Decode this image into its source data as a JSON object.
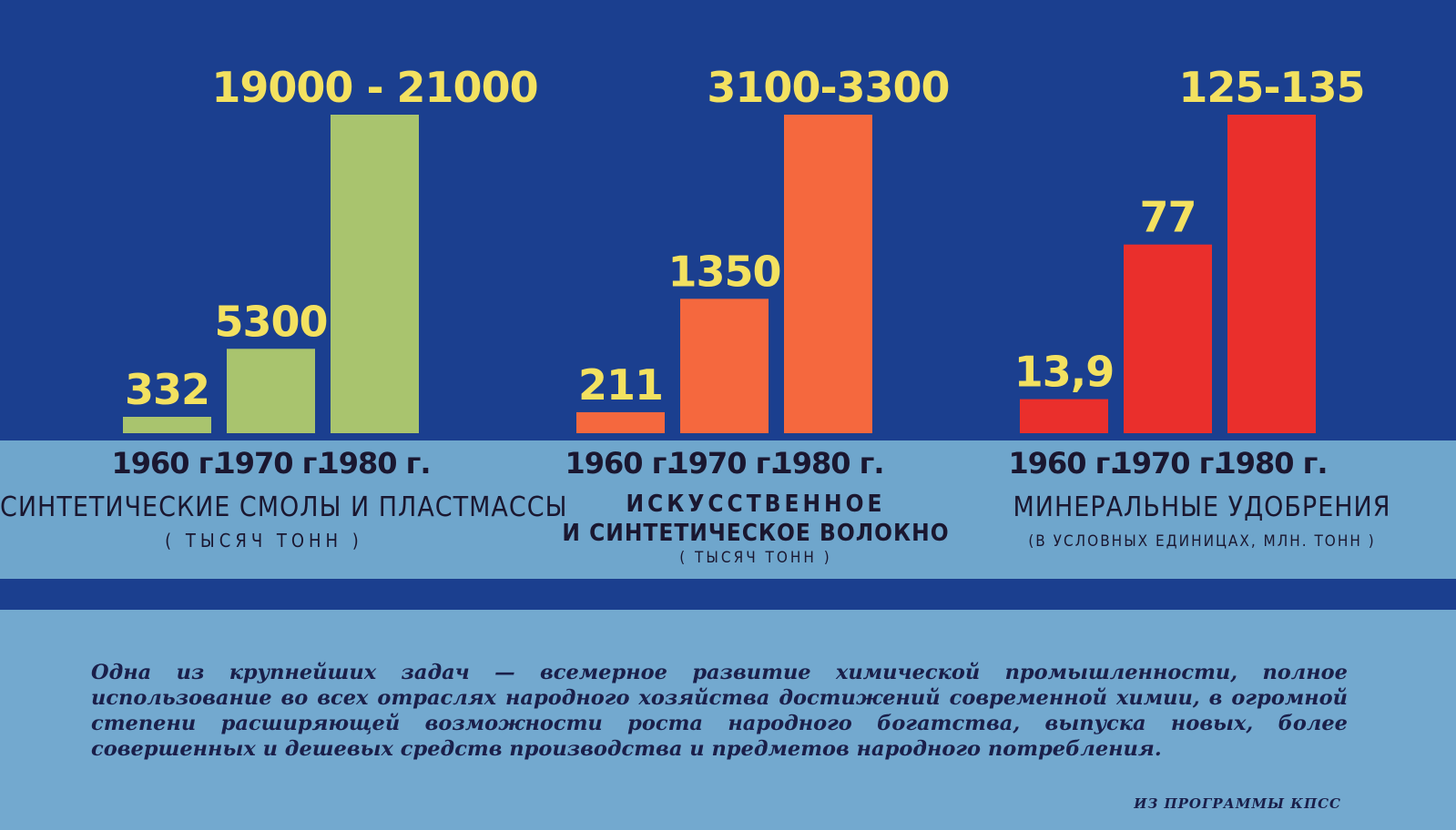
{
  "colors": {
    "background_top": "#1b3f8f",
    "background_bottom": "#6fa6cc",
    "value_label": "#f3e160",
    "plastics_bar": "#a9c46e",
    "fiber_bar": "#f5683e",
    "fertilizer_bar": "#ea2f2c"
  },
  "chart_data": [
    {
      "type": "bar",
      "categories": [
        "1960 г.",
        "1970 г.",
        "1980 г."
      ],
      "values": [
        332,
        5300,
        20000
      ],
      "value_labels": [
        "332",
        "5300",
        "19000 - 21000"
      ],
      "range_1980": [
        19000,
        21000
      ],
      "title": "СИНТЕТИЧЕСКИЕ СМОЛЫ И ПЛАСТМАССЫ",
      "unit": "( ТЫСЯЧ ТОНН )",
      "color": "#a9c46e"
    },
    {
      "type": "bar",
      "categories": [
        "1960 г.",
        "1970 г.",
        "1980 г."
      ],
      "values": [
        211,
        1350,
        3200
      ],
      "value_labels": [
        "211",
        "1350",
        "3100-3300"
      ],
      "range_1980": [
        3100,
        3300
      ],
      "title": [
        "ИСКУССТВЕННОЕ",
        "И СИНТЕТИЧЕСКОЕ ВОЛОКНО"
      ],
      "unit": "( ТЫСЯЧ ТОНН )",
      "color": "#f5683e"
    },
    {
      "type": "bar",
      "categories": [
        "1960 г.",
        "1970 г.",
        "1980 г."
      ],
      "values": [
        13.9,
        77,
        130
      ],
      "value_labels": [
        "13,9",
        "77",
        "125-135"
      ],
      "range_1980": [
        125,
        135
      ],
      "title": "МИНЕРАЛЬНЫЕ УДОБРЕНИЯ",
      "unit": "(В УСЛОВНЫХ ЕДИНИЦАХ, МЛН. ТОНН )",
      "color": "#ea2f2c"
    }
  ],
  "quote": "Одна из крупнейших задач — всемерное развитие химической промышленности, полное использование во всех отраслях народного хозяйства достижений современной химии, в огромной степени расширяющей возможности роста народного богатства, выпуска новых, более совершенных и дешевых средств производства и предметов народного потребления.",
  "source": "ИЗ ПРОГРАММЫ КПСС"
}
